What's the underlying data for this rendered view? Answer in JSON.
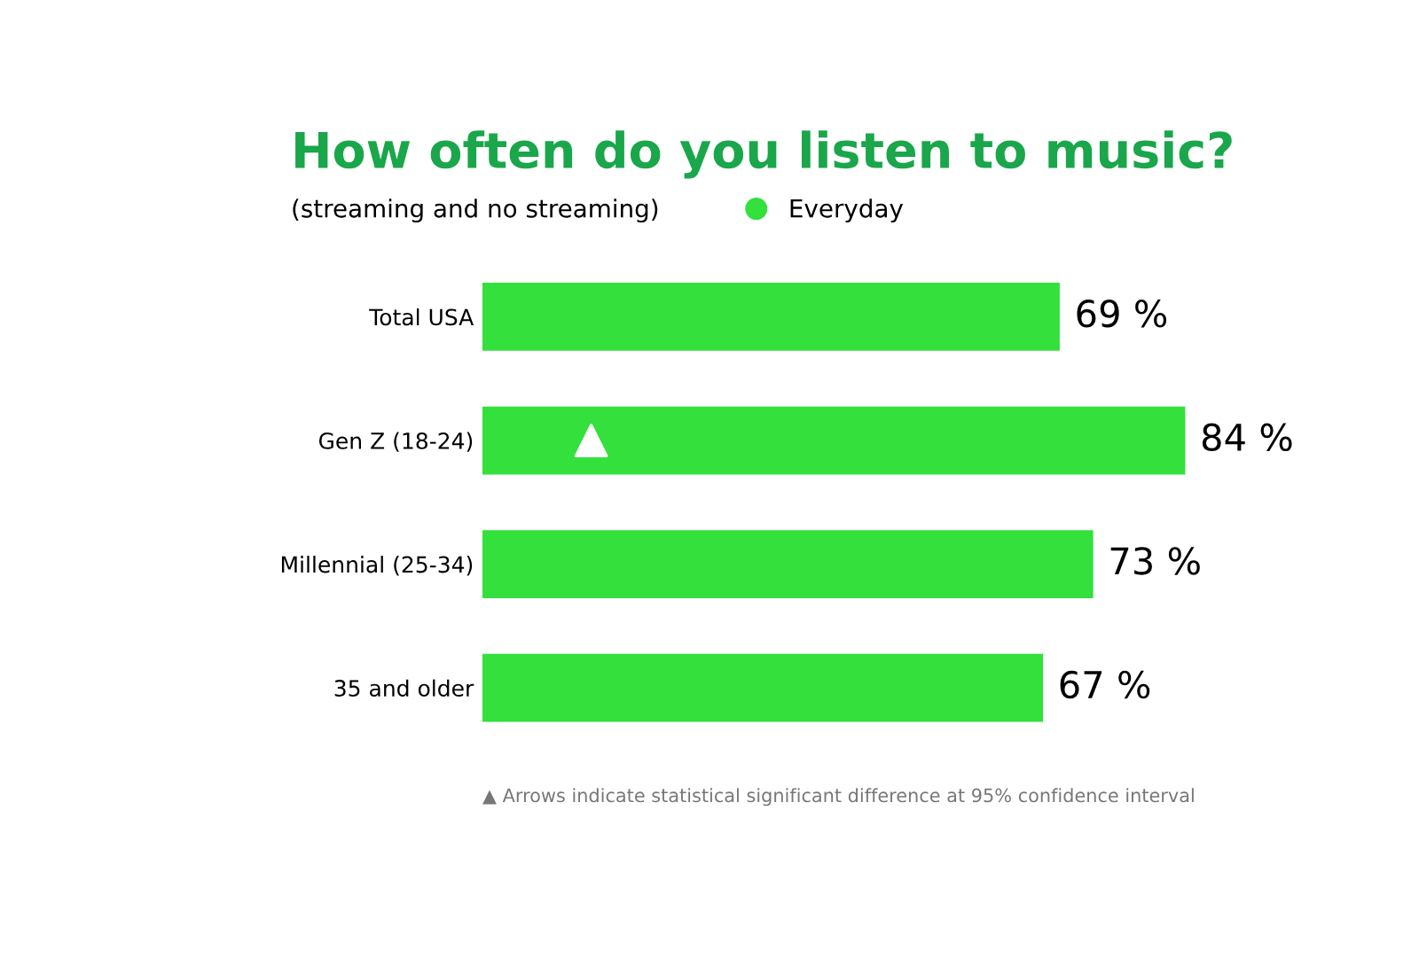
{
  "chart_data": {
    "type": "bar",
    "orientation": "horizontal",
    "title": "How often do you listen to music?",
    "subtitle": "(streaming and no streaming)",
    "categories": [
      "Total USA",
      "Gen Z (18-24)",
      "Millennial (25-34)",
      "35 and older"
    ],
    "series": [
      {
        "name": "Everyday",
        "color": "#33e03c",
        "values": [
          69,
          84,
          73,
          67
        ],
        "value_labels": [
          "69 %",
          "84 %",
          "73 %",
          "67 %"
        ]
      }
    ],
    "legend": "top",
    "grid": false,
    "annotations": [
      "▲ Arrows indicate statistical significant difference at 95% confidence interval"
    ]
  }
}
